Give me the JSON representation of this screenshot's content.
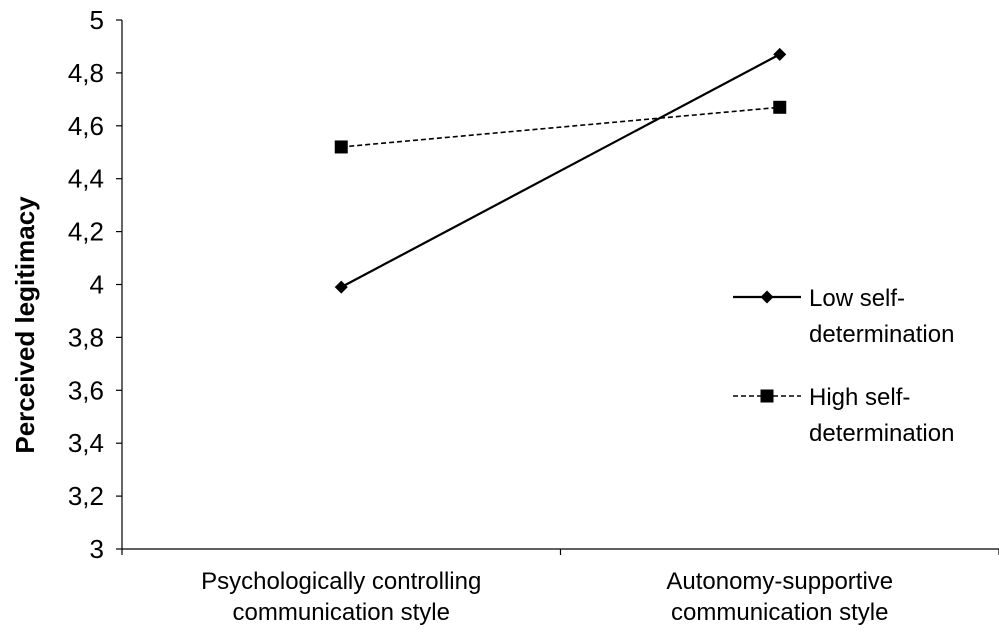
{
  "chart_data": {
    "type": "line",
    "title": "",
    "xlabel": "",
    "ylabel": "Perceived legitimacy",
    "categories": [
      [
        "Psychologically controlling",
        "communication style"
      ],
      [
        "Autonomy-supportive",
        "communication style"
      ]
    ],
    "ylim": [
      3,
      5
    ],
    "yticks": [
      "3",
      "3,2",
      "3,4",
      "3,6",
      "3,8",
      "4",
      "4,2",
      "4,4",
      "4,6",
      "4,8",
      "5"
    ],
    "ytick_values": [
      3,
      3.2,
      3.4,
      3.6,
      3.8,
      4,
      4.2,
      4.4,
      4.6,
      4.8,
      5
    ],
    "grid": false,
    "legend_position": "right",
    "series": [
      {
        "name": [
          "Low self-",
          "determination"
        ],
        "values": [
          3.99,
          4.87
        ],
        "line": "solid",
        "marker": "diamond",
        "color": "#000000"
      },
      {
        "name": [
          "High self-",
          "determination"
        ],
        "values": [
          4.52,
          4.67
        ],
        "line": "dashed",
        "marker": "square",
        "color": "#000000"
      }
    ]
  }
}
